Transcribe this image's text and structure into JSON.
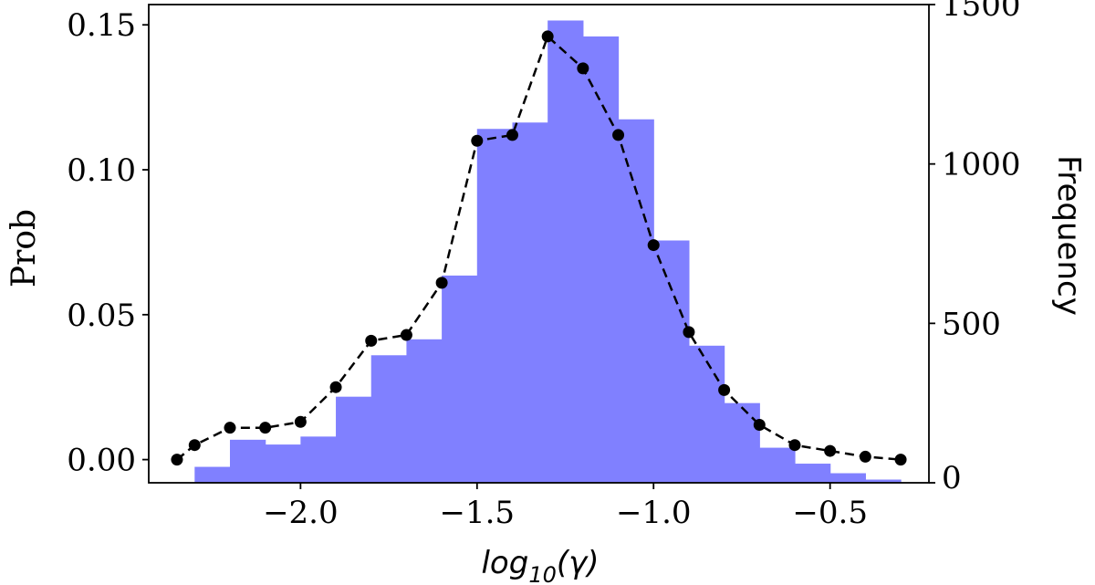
{
  "chart_data": {
    "type": "bar",
    "xlabel": {
      "base": "log",
      "subscript": "10",
      "arg": "(γ)"
    },
    "ylabel": "Prob",
    "ylabel_right": "Frequency",
    "xlim": [
      -2.43,
      -0.22
    ],
    "ylim": [
      -0.008,
      0.157
    ],
    "ylim_right": [
      0,
      1500
    ],
    "xticks": [
      {
        "value": -2.0,
        "label": "−2.0"
      },
      {
        "value": -1.5,
        "label": "−1.5"
      },
      {
        "value": -1.0,
        "label": "−1.0"
      },
      {
        "value": -0.5,
        "label": "−0.5"
      }
    ],
    "yticks": [
      {
        "value": 0.0,
        "label": "0.00"
      },
      {
        "value": 0.05,
        "label": "0.05"
      },
      {
        "value": 0.1,
        "label": "0.10"
      },
      {
        "value": 0.15,
        "label": "0.15"
      }
    ],
    "yticks_right": [
      {
        "value": 0,
        "label": "0"
      },
      {
        "value": 500,
        "label": "500"
      },
      {
        "value": 1000,
        "label": "1000"
      },
      {
        "value": 1500,
        "label": "1500"
      }
    ],
    "histogram": {
      "color": "#8080ff",
      "bin_width": 0.1,
      "bin_starts": [
        -2.3,
        -2.2,
        -2.1,
        -2.0,
        -1.9,
        -1.8,
        -1.7,
        -1.6,
        -1.5,
        -1.4,
        -1.3,
        -1.2,
        -1.1,
        -1.0,
        -0.9,
        -0.8,
        -0.7,
        -0.6,
        -0.5,
        -0.4
      ],
      "frequency": [
        50,
        135,
        120,
        145,
        270,
        400,
        450,
        650,
        1110,
        1130,
        1450,
        1400,
        1140,
        760,
        430,
        250,
        110,
        60,
        30,
        10
      ]
    },
    "line": {
      "color": "#000000",
      "style": "dashed",
      "marker": "circle",
      "x": [
        -2.35,
        -2.3,
        -2.2,
        -2.1,
        -2.0,
        -1.9,
        -1.8,
        -1.7,
        -1.6,
        -1.5,
        -1.4,
        -1.3,
        -1.2,
        -1.1,
        -1.0,
        -0.9,
        -0.8,
        -0.7,
        -0.6,
        -0.5,
        -0.4,
        -0.3
      ],
      "y": [
        0.0,
        0.005,
        0.011,
        0.011,
        0.013,
        0.025,
        0.041,
        0.043,
        0.061,
        0.11,
        0.112,
        0.146,
        0.135,
        0.112,
        0.074,
        0.044,
        0.024,
        0.012,
        0.005,
        0.003,
        0.001,
        0.0
      ]
    }
  }
}
